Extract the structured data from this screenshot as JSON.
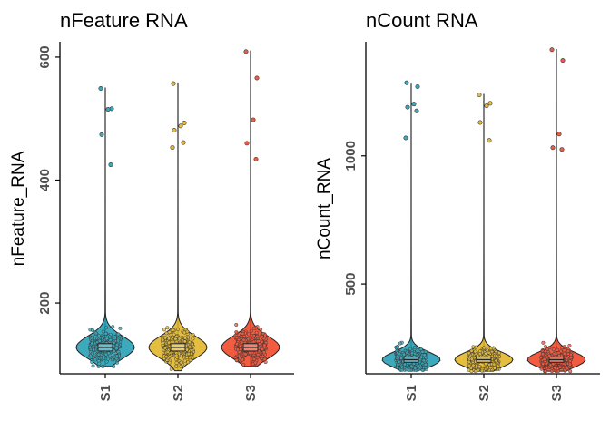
{
  "chart_data": [
    {
      "type": "violin",
      "title": "nFeature RNA",
      "xlabel": "",
      "ylabel": "nFeature_RNA",
      "categories": [
        "S1",
        "S2",
        "S3"
      ],
      "yticks": [
        200,
        400,
        600
      ],
      "ylim": [
        85,
        625
      ],
      "grid": false,
      "colors": [
        "#1a9bb0",
        "#e0b11d",
        "#f03e1f"
      ],
      "series": [
        {
          "category": "S1",
          "median": 128,
          "q1": 122,
          "q3": 134,
          "whisker_min": 97,
          "whisker_max": 550,
          "density_center": 128,
          "density_spread": 18,
          "outliers": [
            549,
            516,
            515,
            474,
            425
          ]
        },
        {
          "category": "S2",
          "median": 128,
          "q1": 122,
          "q3": 134,
          "whisker_min": 90,
          "whisker_max": 558,
          "density_center": 128,
          "density_spread": 18,
          "outliers": [
            557,
            493,
            488,
            481,
            461,
            453
          ]
        },
        {
          "category": "S3",
          "median": 128,
          "q1": 122,
          "q3": 134,
          "whisker_min": 97,
          "whisker_max": 610,
          "density_center": 128,
          "density_spread": 18,
          "outliers": [
            609,
            566,
            498,
            460,
            434
          ]
        }
      ]
    },
    {
      "type": "violin",
      "title": "nCount RNA",
      "xlabel": "",
      "ylabel": "nCount_RNA",
      "categories": [
        "S1",
        "S2",
        "S3"
      ],
      "yticks": [
        500,
        1000
      ],
      "ylim": [
        150,
        1445
      ],
      "grid": false,
      "colors": [
        "#1a9bb0",
        "#e0b11d",
        "#f03e1f"
      ],
      "series": [
        {
          "category": "S1",
          "median": 205,
          "q1": 195,
          "q3": 215,
          "whisker_min": 165,
          "whisker_max": 1280,
          "density_center": 205,
          "density_spread": 30,
          "outliers": [
            1285,
            1270,
            1202,
            1190,
            1175,
            1070
          ]
        },
        {
          "category": "S2",
          "median": 205,
          "q1": 195,
          "q3": 215,
          "whisker_min": 160,
          "whisker_max": 1240,
          "density_center": 205,
          "density_spread": 30,
          "outliers": [
            1238,
            1205,
            1195,
            1130,
            1060
          ]
        },
        {
          "category": "S3",
          "median": 205,
          "q1": 195,
          "q3": 215,
          "whisker_min": 160,
          "whisker_max": 1415,
          "density_center": 205,
          "density_spread": 30,
          "outliers": [
            1414,
            1372,
            1085,
            1032,
            1025
          ]
        }
      ]
    }
  ]
}
